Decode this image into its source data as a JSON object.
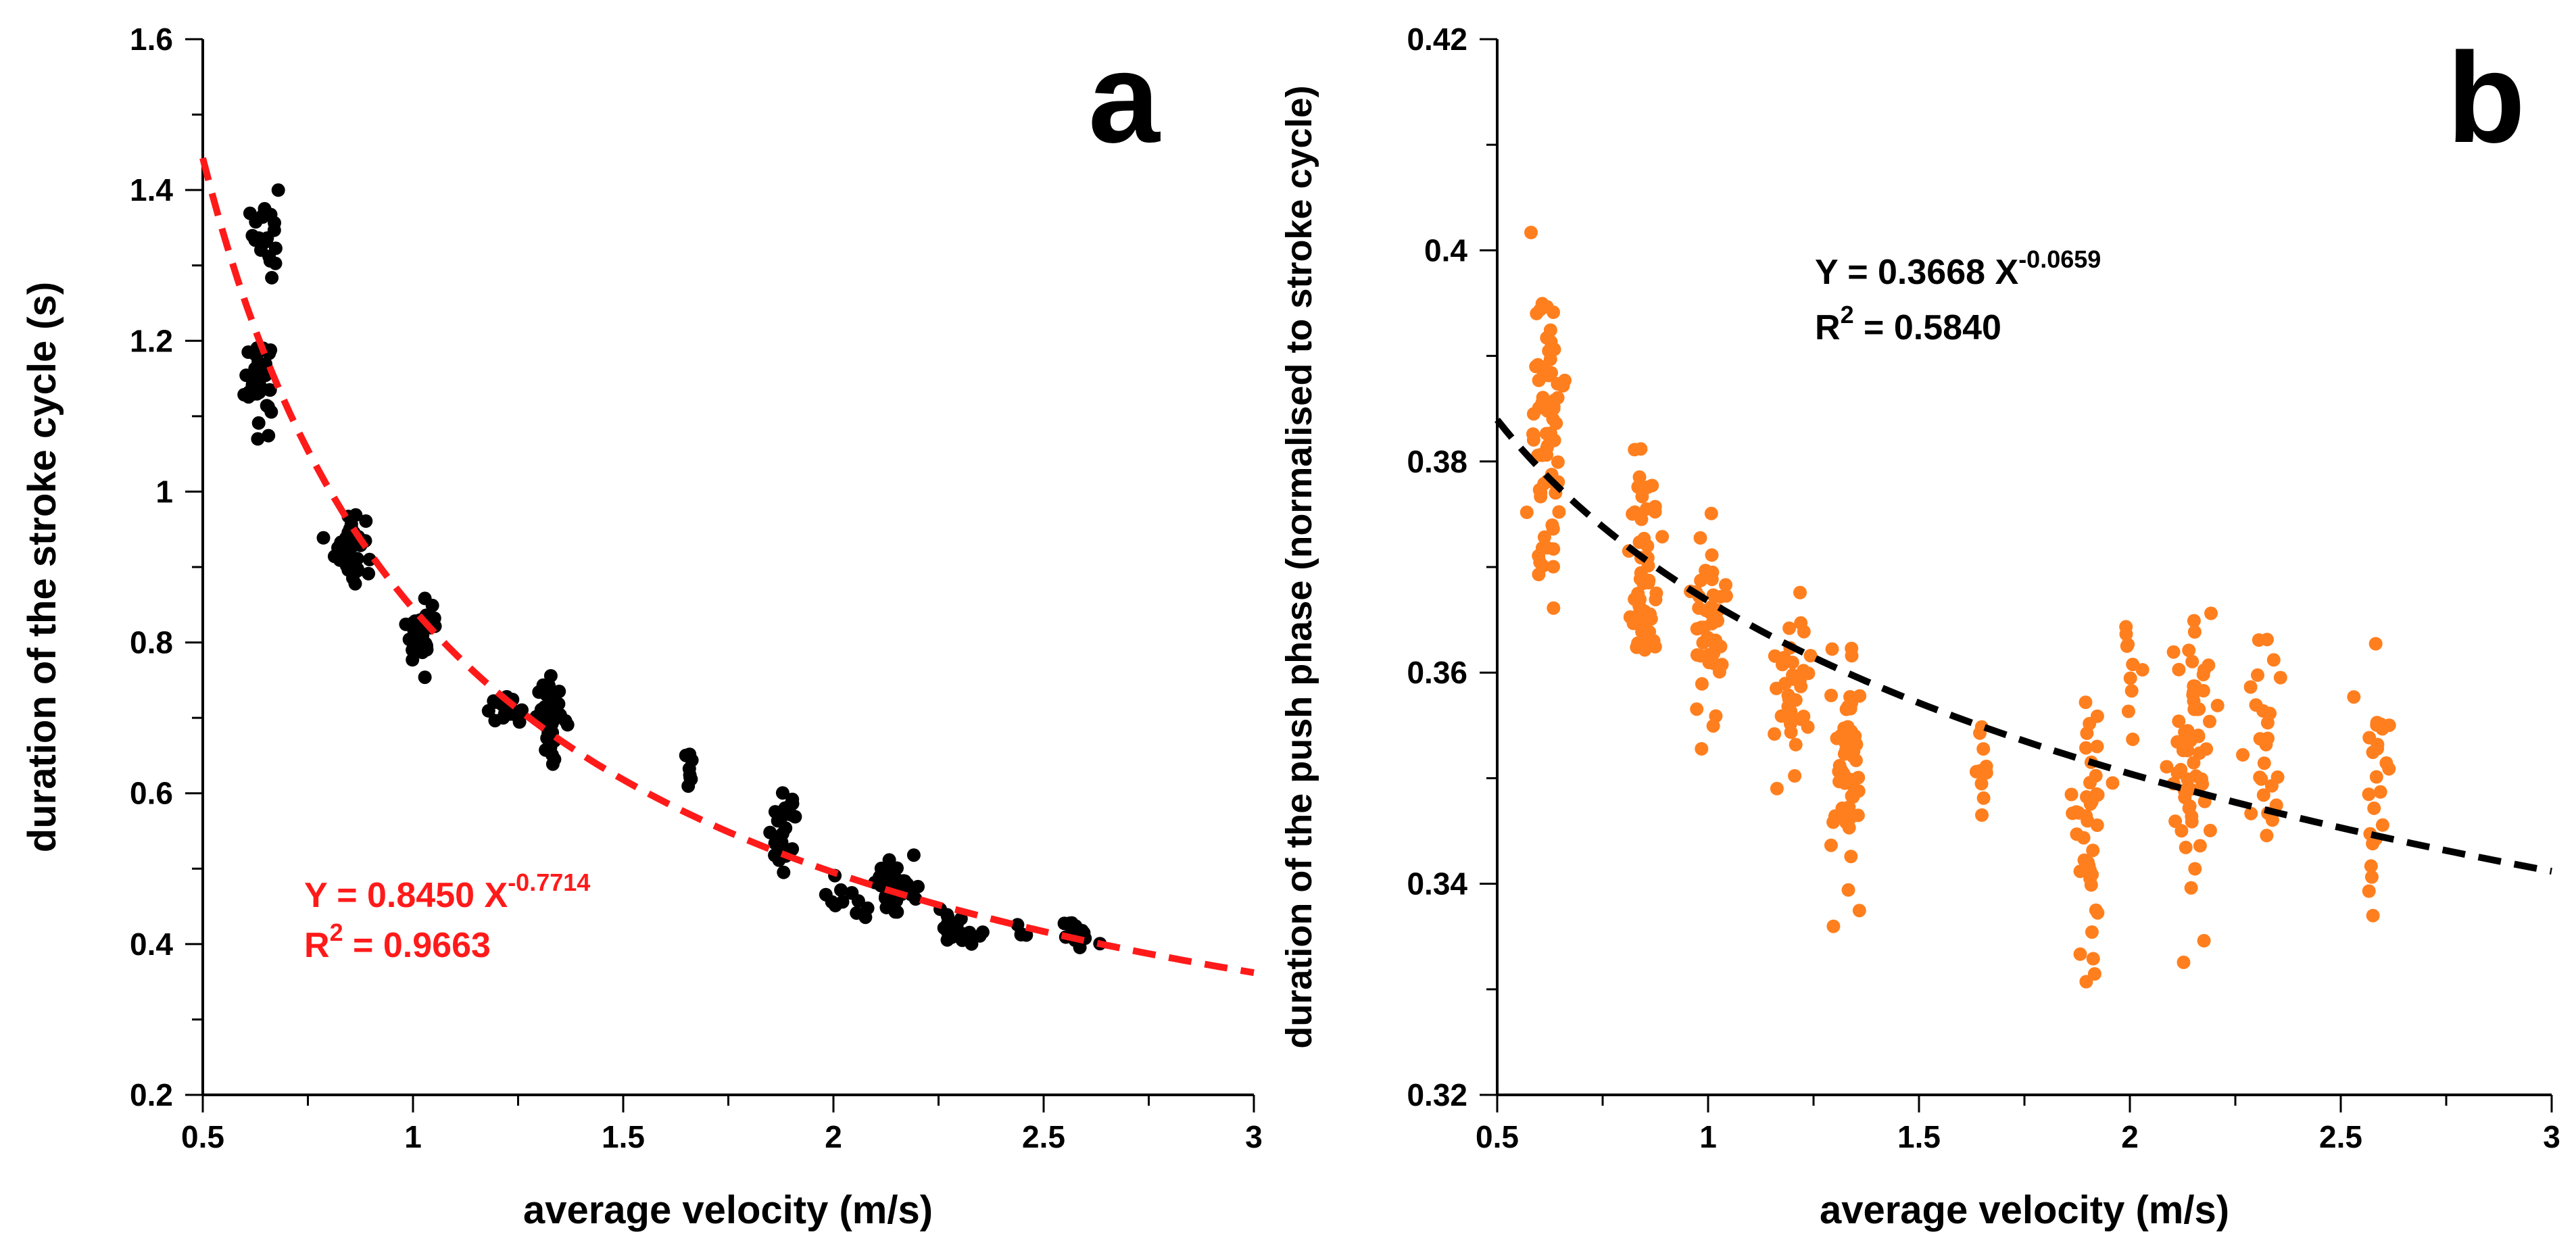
{
  "chart_data": [
    {
      "panel": "a",
      "type": "scatter",
      "panel_label": "a",
      "xlabel": "average velocity (m/s)",
      "ylabel": "duration of the stroke cycle (s)",
      "xlim": [
        0.5,
        3
      ],
      "ylim": [
        0.2,
        1.6
      ],
      "xticks": [
        "0.5",
        "1",
        "1.5",
        "2",
        "2.5",
        "3"
      ],
      "yticks": [
        "0.2",
        "0.4",
        "0.6",
        "0.8",
        "1",
        "1.2",
        "1.4",
        "1.6"
      ],
      "point_color": "#000000",
      "fit_color": "#ff1a1a",
      "fit": {
        "form": "power",
        "coef": 0.845,
        "exp": -0.7714,
        "x_range": [
          0.5,
          3
        ]
      },
      "equation": {
        "lhs": "Y = 0.8450 X",
        "exponent": "-0.7714",
        "r2_prefix": "R",
        "r2_power": "2",
        "r2_value": " = 0.9663",
        "color": "#ff1a1a"
      },
      "clusters": [
        {
          "x": 0.65,
          "y": 1.35,
          "sx": 0.025,
          "sy": 0.04,
          "n": 22
        },
        {
          "x": 0.63,
          "y": 1.15,
          "sx": 0.03,
          "sy": 0.035,
          "n": 45
        },
        {
          "x": 0.85,
          "y": 0.93,
          "sx": 0.03,
          "sy": 0.03,
          "n": 40
        },
        {
          "x": 1.02,
          "y": 0.815,
          "sx": 0.03,
          "sy": 0.025,
          "n": 38
        },
        {
          "x": 1.22,
          "y": 0.71,
          "sx": 0.04,
          "sy": 0.01,
          "n": 20
        },
        {
          "x": 1.33,
          "y": 0.7,
          "sx": 0.03,
          "sy": 0.03,
          "n": 38
        },
        {
          "x": 1.66,
          "y": 0.62,
          "sx": 0.01,
          "sy": 0.025,
          "n": 8
        },
        {
          "x": 1.88,
          "y": 0.55,
          "sx": 0.03,
          "sy": 0.03,
          "n": 28
        },
        {
          "x": 2.02,
          "y": 0.455,
          "sx": 0.05,
          "sy": 0.015,
          "n": 12
        },
        {
          "x": 2.15,
          "y": 0.475,
          "sx": 0.04,
          "sy": 0.025,
          "n": 38
        },
        {
          "x": 2.3,
          "y": 0.42,
          "sx": 0.04,
          "sy": 0.012,
          "n": 28
        },
        {
          "x": 2.45,
          "y": 0.42,
          "sx": 0.02,
          "sy": 0.01,
          "n": 4
        },
        {
          "x": 2.58,
          "y": 0.415,
          "sx": 0.03,
          "sy": 0.01,
          "n": 16
        }
      ]
    },
    {
      "panel": "b",
      "type": "scatter",
      "panel_label": "b",
      "xlabel": "average velocity (m/s)",
      "ylabel": "duration of the push phase (normalised to stroke cycle)",
      "xlim": [
        0.5,
        3
      ],
      "ylim": [
        0.32,
        0.42
      ],
      "xticks": [
        "0.5",
        "1",
        "1.5",
        "2",
        "2.5",
        "3"
      ],
      "yticks": [
        "0.32",
        "0.34",
        "0.36",
        "0.38",
        "0.4",
        "0.42"
      ],
      "point_color": "#ff7f1e",
      "fit_color": "#000000",
      "fit": {
        "form": "power",
        "coef": 0.3668,
        "exp": -0.0659,
        "x_range": [
          0.5,
          3
        ]
      },
      "equation": {
        "lhs": "Y = 0.3668 X",
        "exponent": "-0.0659",
        "r2_prefix": "R",
        "r2_power": "2",
        "r2_value": " = 0.5840",
        "color": "#000000"
      },
      "clusters": [
        {
          "x": 0.62,
          "y": 0.381,
          "sx": 0.03,
          "sy": 0.009,
          "n": 75
        },
        {
          "x": 0.85,
          "y": 0.37,
          "sx": 0.03,
          "sy": 0.006,
          "n": 50
        },
        {
          "x": 1.0,
          "y": 0.364,
          "sx": 0.03,
          "sy": 0.006,
          "n": 45
        },
        {
          "x": 1.2,
          "y": 0.358,
          "sx": 0.04,
          "sy": 0.006,
          "n": 35
        },
        {
          "x": 1.33,
          "y": 0.352,
          "sx": 0.03,
          "sy": 0.007,
          "n": 60
        },
        {
          "x": 1.65,
          "y": 0.35,
          "sx": 0.01,
          "sy": 0.005,
          "n": 10
        },
        {
          "x": 1.9,
          "y": 0.345,
          "sx": 0.03,
          "sy": 0.007,
          "n": 40
        },
        {
          "x": 2.0,
          "y": 0.36,
          "sx": 0.02,
          "sy": 0.003,
          "n": 10
        },
        {
          "x": 2.15,
          "y": 0.352,
          "sx": 0.04,
          "sy": 0.009,
          "n": 60
        },
        {
          "x": 2.32,
          "y": 0.352,
          "sx": 0.03,
          "sy": 0.008,
          "n": 25
        },
        {
          "x": 2.58,
          "y": 0.348,
          "sx": 0.03,
          "sy": 0.009,
          "n": 25
        }
      ]
    }
  ]
}
